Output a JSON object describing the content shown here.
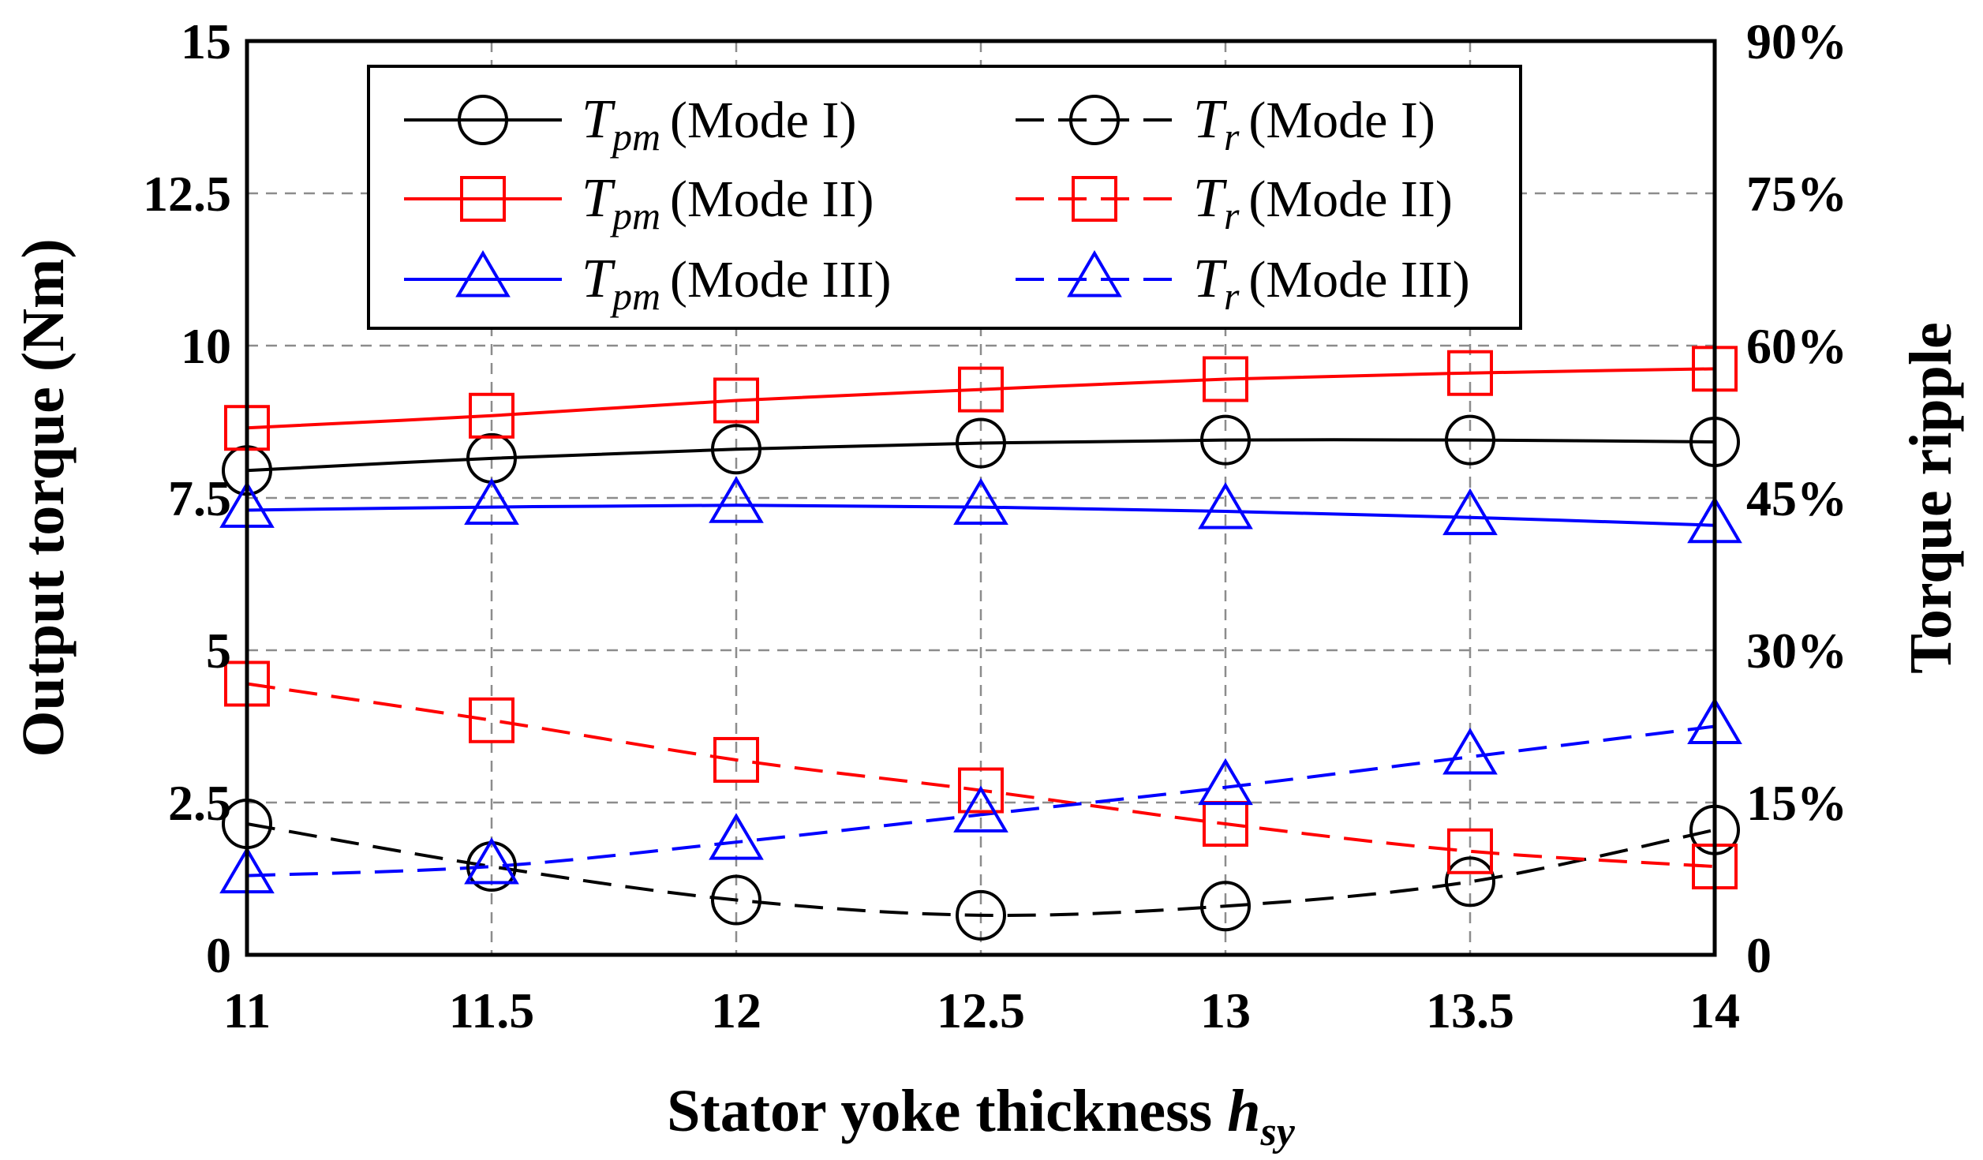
{
  "chart_data": {
    "type": "line",
    "x": [
      11,
      11.5,
      12,
      12.5,
      13,
      13.5,
      14
    ],
    "xlim": [
      11,
      14
    ],
    "xticks": [
      "11",
      "11.5",
      "12",
      "12.5",
      "13",
      "13.5",
      "14"
    ],
    "xlabel": "Stator yoke thickness ",
    "xlabel_var": "h",
    "xlabel_sub": "sy",
    "ylabel_left": "Output torque (Nm)",
    "ylim_left": [
      0,
      15
    ],
    "yticks_left": [
      "0",
      "2.5",
      "5",
      "7.5",
      "10",
      "12.5",
      "15"
    ],
    "ylabel_right": "Torque ripple",
    "ylim_right": [
      0,
      90
    ],
    "yticks_right": [
      "0",
      "15%",
      "30%",
      "45%",
      "60%",
      "75%",
      "90%"
    ],
    "grid": true,
    "legend_position": "top",
    "series": [
      {
        "key": "tpm1",
        "sym": "T",
        "sub": "pm",
        "mode": "(Mode I)",
        "axis": "left",
        "color": "#000000",
        "dash": "solid",
        "marker": "circle",
        "values": [
          7.95,
          8.15,
          8.3,
          8.4,
          8.45,
          8.45,
          8.42
        ]
      },
      {
        "key": "tpm2",
        "sym": "T",
        "sub": "pm",
        "mode": "(Mode II)",
        "axis": "left",
        "color": "#ff0000",
        "dash": "solid",
        "marker": "square",
        "values": [
          8.65,
          8.85,
          9.1,
          9.28,
          9.45,
          9.55,
          9.62
        ]
      },
      {
        "key": "tpm3",
        "sym": "T",
        "sub": "pm",
        "mode": "(Mode III)",
        "axis": "left",
        "color": "#0000ff",
        "dash": "solid",
        "marker": "triangle",
        "values": [
          7.3,
          7.35,
          7.38,
          7.35,
          7.28,
          7.18,
          7.05
        ]
      },
      {
        "key": "tr1",
        "sym": "T",
        "sub": "r",
        "mode": "(Mode I)",
        "axis": "right",
        "color": "#000000",
        "dash": "dashed",
        "marker": "circle",
        "values": [
          12.9,
          8.7,
          5.4,
          3.9,
          4.8,
          7.2,
          12.3
        ]
      },
      {
        "key": "tr2",
        "sym": "T",
        "sub": "r",
        "mode": "(Mode II)",
        "axis": "right",
        "color": "#ff0000",
        "dash": "dashed",
        "marker": "square",
        "values": [
          26.7,
          23.1,
          19.2,
          16.2,
          12.9,
          10.2,
          8.7
        ]
      },
      {
        "key": "tr3",
        "sym": "T",
        "sub": "r",
        "mode": "(Mode III)",
        "axis": "right",
        "color": "#0000ff",
        "dash": "dashed",
        "marker": "triangle",
        "values": [
          7.8,
          8.7,
          11.1,
          13.8,
          16.5,
          19.5,
          22.5
        ]
      }
    ]
  }
}
